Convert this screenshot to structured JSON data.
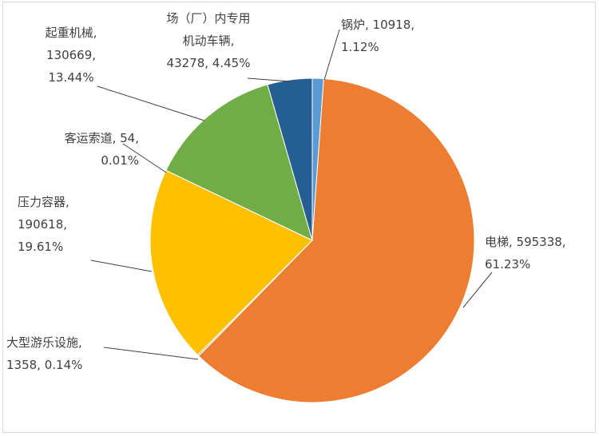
{
  "chart_data": {
    "type": "pie",
    "title": "",
    "start_angle_deg": 0,
    "direction": "clockwise",
    "slices": [
      {
        "name": "锅炉",
        "value": 10918,
        "percent": "1.12%",
        "color": "#5B9BD5",
        "label_lines": [
          "锅炉, 10918,",
          "1.12%"
        ]
      },
      {
        "name": "电梯",
        "value": 595338,
        "percent": "61.23%",
        "color": "#ED7D31",
        "label_lines": [
          "电梯, 595338,",
          "61.23%"
        ]
      },
      {
        "name": "大型游乐设施",
        "value": 1358,
        "percent": "0.14%",
        "color": "#A5A5A5",
        "label_lines": [
          "大型游乐设施,",
          "1358, 0.14%"
        ]
      },
      {
        "name": "压力容器",
        "value": 190618,
        "percent": "19.61%",
        "color": "#FFC000",
        "label_lines": [
          "压力容器,",
          "190618,",
          "19.61%"
        ]
      },
      {
        "name": "客运索道",
        "value": 54,
        "percent": "0.01%",
        "color": "#4472C4",
        "label_lines": [
          "客运索道, 54,",
          "0.01%"
        ]
      },
      {
        "name": "起重机械",
        "value": 130669,
        "percent": "13.44%",
        "color": "#70AD47",
        "label_lines": [
          "起重机械,",
          "130669,",
          "13.44%"
        ]
      },
      {
        "name": "场（厂）内专用机动车辆",
        "value": 43278,
        "percent": "4.45%",
        "color": "#255E91",
        "label_lines": [
          "场（厂）内专用",
          "机动车辆,",
          "43278, 4.45%"
        ]
      }
    ]
  }
}
